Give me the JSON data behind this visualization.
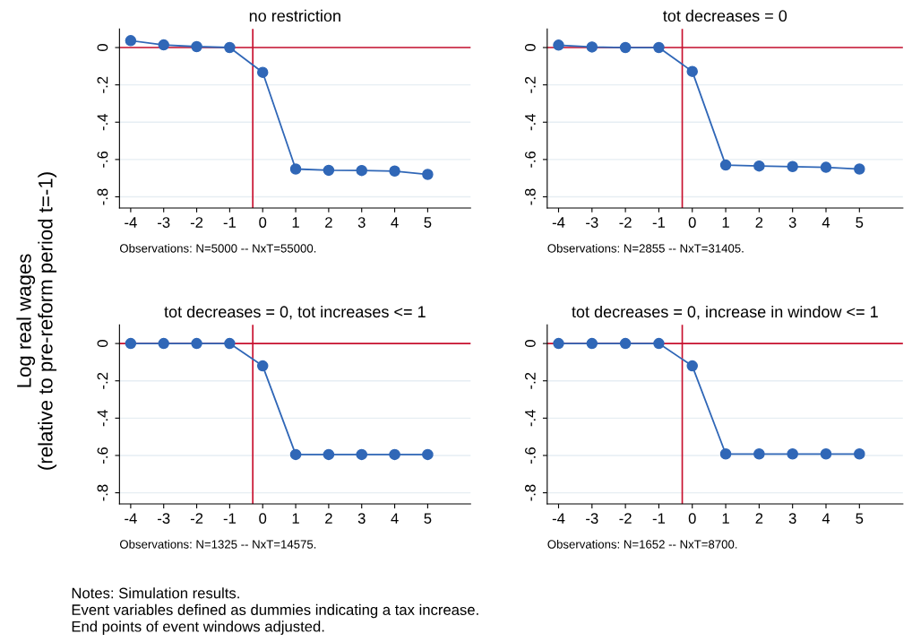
{
  "chart_data": [
    {
      "type": "line",
      "title": "no restriction",
      "ylabel": "Log real wages\n(relative to pre-reform period t=-1)",
      "x": [
        -4,
        -3,
        -2,
        -1,
        0,
        1,
        2,
        3,
        4,
        5
      ],
      "series": [
        {
          "color": "#3067b7",
          "values": [
            0.037,
            0.014,
            0.005,
            0,
            -0.133,
            -0.651,
            -0.658,
            -0.659,
            -0.662,
            -0.68
          ]
        }
      ],
      "xlim": [
        -4.34,
        6.3
      ],
      "ylim": [
        -0.86,
        0.1
      ],
      "xticks": [
        -4,
        -3,
        -2,
        -1,
        0,
        1,
        2,
        3,
        4,
        5
      ],
      "yticks": [
        {
          "value": 0,
          "label": "0"
        },
        {
          "value": -0.2,
          "label": "-.2"
        },
        {
          "value": -0.4,
          "label": "-.4"
        },
        {
          "value": -0.6,
          "label": "-.6"
        },
        {
          "value": -0.8,
          "label": "-.8"
        }
      ],
      "ref_lines": [
        {
          "axis": "y",
          "value": 0,
          "color": "#c8102e"
        },
        {
          "axis": "x",
          "value": -0.3,
          "color": "#c8102e"
        }
      ],
      "grid": "y",
      "marker": "circle",
      "line_style": "solid",
      "annotations": [
        "Observations: N=5000 -- NxT=55000."
      ]
    },
    {
      "type": "line",
      "title": "tot decreases = 0",
      "x": [
        -4,
        -3,
        -2,
        -1,
        0,
        1,
        2,
        3,
        4,
        5
      ],
      "series": [
        {
          "color": "#3067b7",
          "values": [
            0.013,
            0.003,
            0,
            0,
            -0.128,
            -0.63,
            -0.635,
            -0.638,
            -0.642,
            -0.651
          ]
        }
      ],
      "xlim": [
        -4.34,
        6.3
      ],
      "ylim": [
        -0.86,
        0.1
      ],
      "xticks": [
        -4,
        -3,
        -2,
        -1,
        0,
        1,
        2,
        3,
        4,
        5
      ],
      "yticks": [
        {
          "value": 0,
          "label": "0"
        },
        {
          "value": -0.2,
          "label": "-.2"
        },
        {
          "value": -0.4,
          "label": "-.4"
        },
        {
          "value": -0.6,
          "label": "-.6"
        },
        {
          "value": -0.8,
          "label": "-.8"
        }
      ],
      "ref_lines": [
        {
          "axis": "y",
          "value": 0,
          "color": "#c8102e"
        },
        {
          "axis": "x",
          "value": -0.3,
          "color": "#c8102e"
        }
      ],
      "grid": "y",
      "marker": "circle",
      "line_style": "solid",
      "annotations": [
        "Observations: N=2855 -- NxT=31405."
      ]
    },
    {
      "type": "line",
      "title": "tot decreases = 0, tot increases <= 1",
      "x": [
        -4,
        -3,
        -2,
        -1,
        0,
        1,
        2,
        3,
        4,
        5
      ],
      "series": [
        {
          "color": "#3067b7",
          "values": [
            0,
            0,
            0,
            0,
            -0.12,
            -0.595,
            -0.595,
            -0.595,
            -0.595,
            -0.595
          ]
        }
      ],
      "xlim": [
        -4.34,
        6.3
      ],
      "ylim": [
        -0.86,
        0.1
      ],
      "xticks": [
        -4,
        -3,
        -2,
        -1,
        0,
        1,
        2,
        3,
        4,
        5
      ],
      "yticks": [
        {
          "value": 0,
          "label": "0"
        },
        {
          "value": -0.2,
          "label": "-.2"
        },
        {
          "value": -0.4,
          "label": "-.4"
        },
        {
          "value": -0.6,
          "label": "-.6"
        },
        {
          "value": -0.8,
          "label": "-.8"
        }
      ],
      "ref_lines": [
        {
          "axis": "y",
          "value": 0,
          "color": "#c8102e"
        },
        {
          "axis": "x",
          "value": -0.3,
          "color": "#c8102e"
        }
      ],
      "grid": "y",
      "marker": "circle",
      "line_style": "solid",
      "annotations": [
        "Observations: N=1325 -- NxT=14575.",
        "Notes: Simulation results.",
        "Event variables defined as dummies indicating a tax increase.",
        "End points of event windows adjusted."
      ]
    },
    {
      "type": "line",
      "title": "tot decreases = 0, increase in window <= 1",
      "x": [
        -4,
        -3,
        -2,
        -1,
        0,
        1,
        2,
        3,
        4,
        5
      ],
      "series": [
        {
          "color": "#3067b7",
          "values": [
            0,
            0,
            0,
            0,
            -0.12,
            -0.592,
            -0.592,
            -0.592,
            -0.592,
            -0.592
          ]
        }
      ],
      "xlim": [
        -4.34,
        6.3
      ],
      "ylim": [
        -0.86,
        0.1
      ],
      "xticks": [
        -4,
        -3,
        -2,
        -1,
        0,
        1,
        2,
        3,
        4,
        5
      ],
      "yticks": [
        {
          "value": 0,
          "label": "0"
        },
        {
          "value": -0.2,
          "label": "-.2"
        },
        {
          "value": -0.4,
          "label": "-.4"
        },
        {
          "value": -0.6,
          "label": "-.6"
        },
        {
          "value": -0.8,
          "label": "-.8"
        }
      ],
      "ref_lines": [
        {
          "axis": "y",
          "value": 0,
          "color": "#c8102e"
        },
        {
          "axis": "x",
          "value": -0.3,
          "color": "#c8102e"
        }
      ],
      "grid": "y",
      "marker": "circle",
      "line_style": "solid",
      "annotations": [
        "Observations: N=1652 -- NxT=8700."
      ]
    }
  ]
}
